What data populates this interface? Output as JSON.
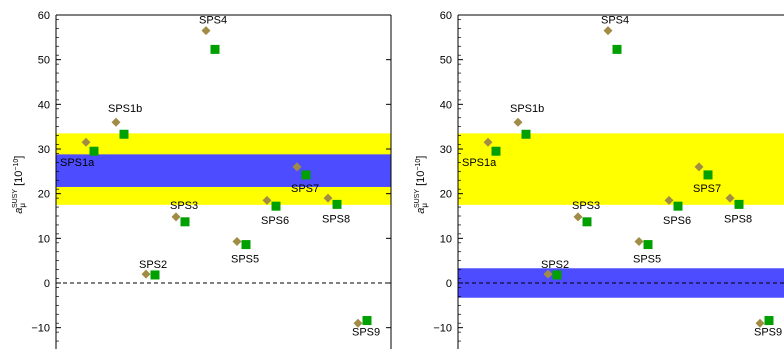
{
  "chart_data": [
    {
      "type": "scatter",
      "panel": "left",
      "ylabel": "a_μ^SUSY [10^-10]",
      "ylabel_parts": {
        "a": "a",
        "sub": "μ",
        "sup": "SUSY",
        "unit": "[10",
        "exp": "−10",
        "close": "]"
      },
      "ylim": [
        -15,
        60
      ],
      "yticks": [
        "−10",
        "0",
        "10",
        "20",
        "30",
        "40",
        "50",
        "60"
      ],
      "ytick_values": [
        -10,
        0,
        10,
        20,
        30,
        40,
        50,
        60
      ],
      "zero_line": "dashed",
      "bands": [
        {
          "name": "",
          "color": "#ffff00",
          "y_range": [
            17.5,
            33.5
          ]
        },
        {
          "name": "",
          "color": "#4d4dff",
          "y_range": [
            21.5,
            28.8
          ]
        }
      ],
      "series": [
        {
          "name": "",
          "marker": "diamond",
          "color": "#a08c45",
          "points": [
            {
              "label": "SPS1a",
              "x": 1,
              "y": 31.5
            },
            {
              "label": "SPS1b",
              "x": 2,
              "y": 36.0
            },
            {
              "label": "SPS2",
              "x": 3,
              "y": 2.0
            },
            {
              "label": "SPS3",
              "x": 4,
              "y": 14.8
            },
            {
              "label": "SPS4",
              "x": 5,
              "y": 56.5
            },
            {
              "label": "SPS5",
              "x": 6,
              "y": 9.3
            },
            {
              "label": "SPS6",
              "x": 7,
              "y": 18.5
            },
            {
              "label": "SPS7",
              "x": 8,
              "y": 26.0
            },
            {
              "label": "SPS8",
              "x": 9,
              "y": 19.0
            },
            {
              "label": "SPS9",
              "x": 10,
              "y": -9.0
            }
          ]
        },
        {
          "name": "",
          "marker": "square",
          "color": "#00a000",
          "points": [
            {
              "label": "SPS1a",
              "x": 1,
              "y": 29.5
            },
            {
              "label": "SPS1b",
              "x": 2,
              "y": 33.3
            },
            {
              "label": "SPS2",
              "x": 3,
              "y": 1.8
            },
            {
              "label": "SPS3",
              "x": 4,
              "y": 13.7
            },
            {
              "label": "SPS4",
              "x": 5,
              "y": 52.3
            },
            {
              "label": "SPS5",
              "x": 6,
              "y": 8.6
            },
            {
              "label": "SPS6",
              "x": 7,
              "y": 17.2
            },
            {
              "label": "SPS7",
              "x": 8,
              "y": 24.2
            },
            {
              "label": "SPS8",
              "x": 9,
              "y": 17.6
            },
            {
              "label": "SPS9",
              "x": 10,
              "y": -8.4
            }
          ]
        }
      ]
    },
    {
      "type": "scatter",
      "panel": "right",
      "ylabel": "a_μ^SUSY [10^-10]",
      "ylabel_parts": {
        "a": "a",
        "sub": "μ",
        "sup": "SUSY",
        "unit": "[10",
        "exp": "−10",
        "close": "]"
      },
      "ylim": [
        -15,
        60
      ],
      "yticks": [
        "−10",
        "0",
        "10",
        "20",
        "30",
        "40",
        "50",
        "60"
      ],
      "ytick_values": [
        -10,
        0,
        10,
        20,
        30,
        40,
        50,
        60
      ],
      "zero_line": "dashed",
      "bands": [
        {
          "name": "",
          "color": "#ffff00",
          "y_range": [
            17.5,
            33.5
          ]
        },
        {
          "name": "",
          "color": "#4d4dff",
          "y_range": [
            -3.3,
            3.3
          ]
        }
      ],
      "series": [
        {
          "name": "",
          "marker": "diamond",
          "color": "#a08c45",
          "points": [
            {
              "label": "SPS1a",
              "x": 1,
              "y": 31.5
            },
            {
              "label": "SPS1b",
              "x": 2,
              "y": 36.0
            },
            {
              "label": "SPS2",
              "x": 3,
              "y": 2.0
            },
            {
              "label": "SPS3",
              "x": 4,
              "y": 14.8
            },
            {
              "label": "SPS4",
              "x": 5,
              "y": 56.5
            },
            {
              "label": "SPS5",
              "x": 6,
              "y": 9.3
            },
            {
              "label": "SPS6",
              "x": 7,
              "y": 18.5
            },
            {
              "label": "SPS7",
              "x": 8,
              "y": 26.0
            },
            {
              "label": "SPS8",
              "x": 9,
              "y": 19.0
            },
            {
              "label": "SPS9",
              "x": 10,
              "y": -9.0
            }
          ]
        },
        {
          "name": "",
          "marker": "square",
          "color": "#00a000",
          "points": [
            {
              "label": "SPS1a",
              "x": 1,
              "y": 29.5
            },
            {
              "label": "SPS1b",
              "x": 2,
              "y": 33.3
            },
            {
              "label": "SPS2",
              "x": 3,
              "y": 1.8
            },
            {
              "label": "SPS3",
              "x": 4,
              "y": 13.7
            },
            {
              "label": "SPS4",
              "x": 5,
              "y": 52.3
            },
            {
              "label": "SPS5",
              "x": 6,
              "y": 8.6
            },
            {
              "label": "SPS6",
              "x": 7,
              "y": 17.2
            },
            {
              "label": "SPS7",
              "x": 8,
              "y": 24.2
            },
            {
              "label": "SPS8",
              "x": 9,
              "y": 17.6
            },
            {
              "label": "SPS9",
              "x": 10,
              "y": -8.4
            }
          ]
        }
      ]
    }
  ]
}
